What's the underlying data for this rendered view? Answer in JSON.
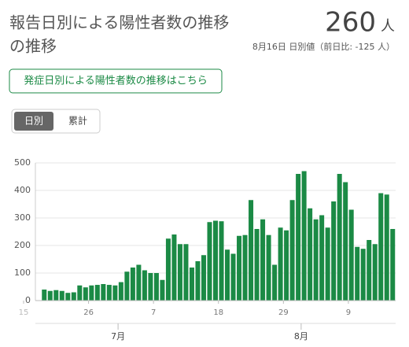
{
  "header": {
    "title_line1": "報告日別による陽性者数の推移",
    "title_line2": "の推移",
    "value": 260,
    "unit": "人",
    "subtitle": "8月16日 日別値（前日比: -125 人）"
  },
  "link_button": "発症日別による陽性者数の推移はこちら",
  "toggle": [
    "日別",
    "累計"
  ],
  "chart_data": {
    "type": "bar",
    "color": "#1b8a45",
    "x": [
      "06-18",
      "06-19",
      "06-20",
      "06-21",
      "06-22",
      "06-23",
      "06-24",
      "06-25",
      "06-26",
      "06-27",
      "06-28",
      "06-29",
      "06-30",
      "07-01",
      "07-02",
      "07-03",
      "07-04",
      "07-05",
      "07-06",
      "07-07",
      "07-08",
      "07-09",
      "07-10",
      "07-11",
      "07-12",
      "07-13",
      "07-14",
      "07-15",
      "07-16",
      "07-17",
      "07-18",
      "07-19",
      "07-20",
      "07-21",
      "07-22",
      "07-23",
      "07-24",
      "07-25",
      "07-26",
      "07-27",
      "07-28",
      "07-29",
      "07-30",
      "07-31",
      "08-01",
      "08-02",
      "08-03",
      "08-04",
      "08-05",
      "08-06",
      "08-07",
      "08-08",
      "08-09",
      "08-10",
      "08-11",
      "08-12",
      "08-13",
      "08-14",
      "08-15",
      "08-16"
    ],
    "values": [
      40,
      35,
      38,
      35,
      28,
      30,
      55,
      48,
      55,
      57,
      60,
      57,
      55,
      67,
      105,
      120,
      130,
      110,
      100,
      100,
      75,
      225,
      240,
      205,
      205,
      120,
      143,
      165,
      285,
      290,
      288,
      185,
      170,
      235,
      238,
      365,
      260,
      295,
      238,
      130,
      265,
      255,
      365,
      460,
      470,
      335,
      295,
      310,
      265,
      360,
      460,
      430,
      330,
      195,
      188,
      220,
      205,
      390,
      385,
      260
    ],
    "xlim": [
      "06-17",
      "08-17"
    ],
    "xticks": [
      {
        "value": "06-15",
        "label": "15"
      },
      {
        "value": "06-26",
        "label": "26"
      },
      {
        "value": "07-07",
        "label": "7"
      },
      {
        "value": "07-18",
        "label": "18"
      },
      {
        "value": "07-29",
        "label": "29"
      },
      {
        "value": "08-09",
        "label": "9"
      }
    ],
    "month_ticks": [
      {
        "value": "07-01",
        "label": "7月"
      },
      {
        "value": "08-01",
        "label": "8月"
      }
    ],
    "ylim": [
      0,
      500
    ],
    "yticks": [
      0,
      100,
      200,
      300,
      400,
      500
    ],
    "grid": true
  }
}
